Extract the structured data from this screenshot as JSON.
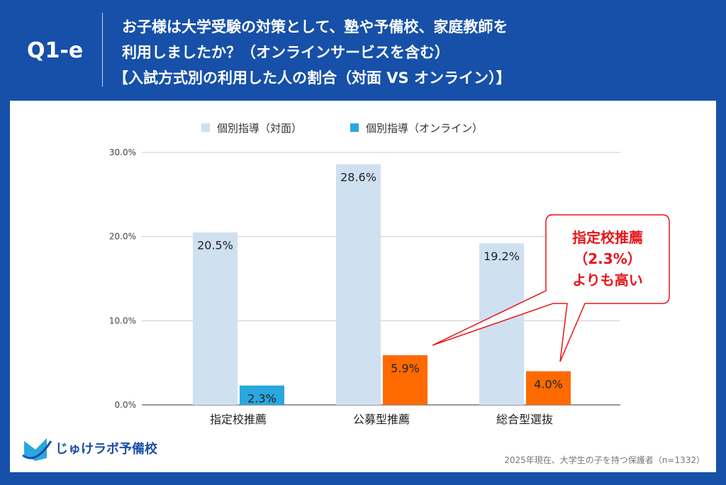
{
  "header": {
    "label": "Q1-e",
    "title_lines": [
      "お子様は大学受験の対策として、塾や予備校、家庭教師を",
      "利用しましたか？（オンラインサービスを含む）",
      "【入試方式別の利用した人の割合（対面 VS オンライン）】"
    ]
  },
  "chart_data": {
    "type": "bar",
    "categories": [
      "指定校推薦",
      "公募型推薦",
      "総合型選抜"
    ],
    "series": [
      {
        "name": "個別指導（対面）",
        "values": [
          20.5,
          28.6,
          19.2
        ],
        "color": "#cfe0f1"
      },
      {
        "name": "個別指導（オンライン）",
        "values": [
          2.3,
          5.9,
          4.0
        ],
        "colors": [
          "#2aa7df",
          "#ff6a00",
          "#ff6a00"
        ]
      }
    ],
    "data_labels": [
      [
        "20.5%",
        "28.6%",
        "19.2%"
      ],
      [
        "2.3%",
        "5.9%",
        "4.0%"
      ]
    ],
    "yticks": [
      "0.0%",
      "10.0%",
      "20.0%",
      "30.0%"
    ],
    "ylim": [
      0,
      30
    ],
    "grid": true,
    "legend": "top"
  },
  "callout": {
    "lines": [
      "指定校推薦",
      "（2.3%）",
      "よりも高い"
    ],
    "color": "#e8161b"
  },
  "logo": {
    "text": "じゅけラボ予備校"
  },
  "source": "2025年現在、大学生の子を持つ保護者（n=1332）"
}
